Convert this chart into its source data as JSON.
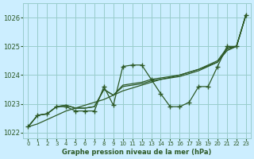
{
  "title": "Graphe pression niveau de la mer (hPa)",
  "bg_color": "#cceeff",
  "grid_color": "#99cccc",
  "line_color": "#2d5a27",
  "xlim_min": -0.5,
  "xlim_max": 23.5,
  "ylim_min": 1021.8,
  "ylim_max": 1026.5,
  "yticks": [
    1022,
    1023,
    1024,
    1025,
    1026
  ],
  "xticks": [
    0,
    1,
    2,
    3,
    4,
    5,
    6,
    7,
    8,
    9,
    10,
    11,
    12,
    13,
    14,
    15,
    16,
    17,
    18,
    19,
    20,
    21,
    22,
    23
  ],
  "y_straight": [
    1022.2,
    1022.3,
    1022.45,
    1022.6,
    1022.75,
    1022.85,
    1022.95,
    1023.05,
    1023.15,
    1023.3,
    1023.45,
    1023.55,
    1023.65,
    1023.75,
    1023.85,
    1023.92,
    1024.0,
    1024.1,
    1024.2,
    1024.32,
    1024.45,
    1024.85,
    1025.0,
    1026.1
  ],
  "y_smooth": [
    1022.2,
    1022.6,
    1022.65,
    1022.9,
    1022.95,
    1022.85,
    1022.85,
    1022.9,
    1023.5,
    1023.3,
    1023.6,
    1023.65,
    1023.7,
    1023.8,
    1023.85,
    1023.9,
    1023.95,
    1024.05,
    1024.15,
    1024.3,
    1024.45,
    1024.9,
    1025.0,
    1026.1
  ],
  "y_smooth2": [
    1022.2,
    1022.6,
    1022.65,
    1022.9,
    1022.95,
    1022.85,
    1022.85,
    1022.9,
    1023.5,
    1023.3,
    1023.65,
    1023.7,
    1023.75,
    1023.85,
    1023.9,
    1023.95,
    1024.0,
    1024.1,
    1024.2,
    1024.35,
    1024.5,
    1024.95,
    1025.0,
    1026.1
  ],
  "y_main": [
    1022.2,
    1022.6,
    1022.65,
    1022.9,
    1022.9,
    1022.75,
    1022.75,
    1022.75,
    1023.6,
    1022.95,
    1024.3,
    1024.35,
    1024.35,
    1023.85,
    1023.35,
    1022.9,
    1022.9,
    1023.05,
    1023.6,
    1023.6,
    1024.3,
    1025.0,
    1025.0,
    1026.1
  ],
  "marker": "+",
  "markersize": 4,
  "linewidth": 0.9
}
